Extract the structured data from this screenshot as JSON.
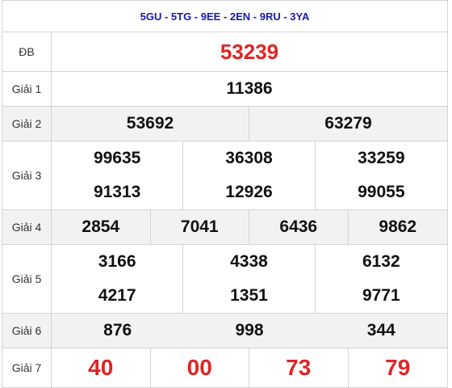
{
  "header": {
    "title": "5GU - 5TG - 9EE - 2EN - 9RU - 3YA"
  },
  "prizes": [
    {
      "label": "ĐB",
      "numbers": [
        "53239"
      ]
    },
    {
      "label": "Giải 1",
      "numbers": [
        "11386"
      ]
    },
    {
      "label": "Giải 2",
      "numbers": [
        "53692",
        "63279"
      ]
    },
    {
      "label": "Giải 3",
      "numbers": [
        "99635",
        "36308",
        "33259",
        "91313",
        "12926",
        "99055"
      ]
    },
    {
      "label": "Giải 4",
      "numbers": [
        "2854",
        "7041",
        "6436",
        "9862"
      ]
    },
    {
      "label": "Giải 5",
      "numbers": [
        "3166",
        "4338",
        "6132",
        "4217",
        "1351",
        "9771"
      ]
    },
    {
      "label": "Giải 6",
      "numbers": [
        "876",
        "998",
        "344"
      ]
    },
    {
      "label": "Giải 7",
      "numbers": [
        "40",
        "00",
        "73",
        "79"
      ]
    }
  ]
}
